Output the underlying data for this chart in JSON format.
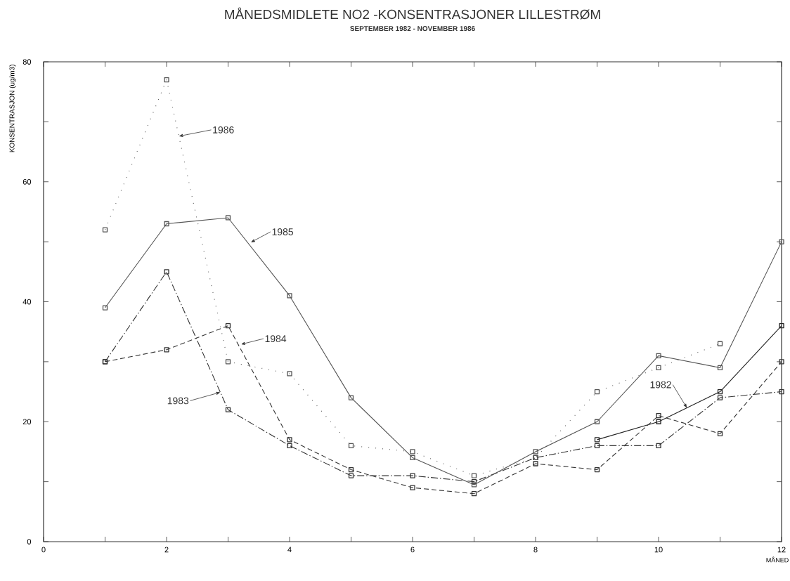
{
  "chart_data": {
    "type": "line",
    "title": "MÅNEDSMIDLETE NO2 -KONSENTRASJONER LILLESTRØM",
    "subtitle": "SEPTEMBER 1982 - NOVEMBER 1986",
    "xlabel": "MÅNED",
    "ylabel": "KONSENTRASJON (ug/m3)",
    "xlim": [
      0,
      12
    ],
    "xticks": [
      0,
      {
        "value": 1,
        "label": null
      },
      2,
      {
        "value": 3,
        "label": null
      },
      4,
      {
        "value": 5,
        "label": null
      },
      6,
      {
        "value": 7,
        "label": null
      },
      8,
      {
        "value": 9,
        "label": null
      },
      10,
      {
        "value": 11,
        "label": null
      },
      12
    ],
    "ylim": [
      0,
      80
    ],
    "yticks": [
      0,
      {
        "value": 10,
        "label": null
      },
      20,
      {
        "value": 30,
        "label": null
      },
      40,
      {
        "value": 50,
        "label": null
      },
      60,
      {
        "value": 70,
        "label": null
      },
      80
    ],
    "marker": "square",
    "series": [
      {
        "color": "#222222",
        "line_style": "solid",
        "x": [
          9,
          10,
          11,
          12
        ],
        "values": [
          17,
          20,
          25,
          36
        ]
      },
      {
        "color": "#333333",
        "line_style": "dashdot",
        "x": [
          1,
          2,
          3,
          4,
          5,
          6,
          7,
          8,
          9,
          10,
          11,
          12
        ],
        "values": [
          30,
          45,
          22,
          16,
          11,
          11,
          10,
          14,
          16,
          16,
          24,
          25
        ]
      },
      {
        "color": "#333333",
        "line_style": "dashed",
        "x": [
          1,
          2,
          3,
          4,
          5,
          6,
          7,
          8,
          9,
          10,
          11,
          12
        ],
        "values": [
          30,
          32,
          36,
          17,
          12,
          9,
          8,
          13,
          12,
          21,
          18,
          30
        ]
      },
      {
        "color": "#555555",
        "line_style": "solid",
        "x": [
          1,
          2,
          3,
          4,
          5,
          6,
          7,
          8,
          9,
          10,
          11,
          12
        ],
        "values": [
          39,
          53,
          54,
          41,
          24,
          14,
          9.5,
          15,
          20,
          31,
          29,
          50
        ]
      },
      {
        "color": "#555555",
        "line_style": "dotted",
        "x": [
          1,
          2,
          3,
          4,
          5,
          6,
          7,
          8,
          9,
          10,
          11
        ],
        "values": [
          52,
          77,
          30,
          28,
          16,
          15,
          11,
          14,
          25,
          29,
          33
        ]
      }
    ],
    "annotations": [
      {
        "text": "1986",
        "x": 2.2,
        "y": 67.6
      },
      {
        "text": "1985",
        "x": 3.37,
        "y": 49.9
      },
      {
        "text": "1984",
        "x": 3.21,
        "y": 32.9
      },
      {
        "text": "1983",
        "x": 2.874,
        "y": 24.9
      },
      {
        "text": "1982",
        "x": 10.46,
        "y": 22.3
      }
    ]
  }
}
